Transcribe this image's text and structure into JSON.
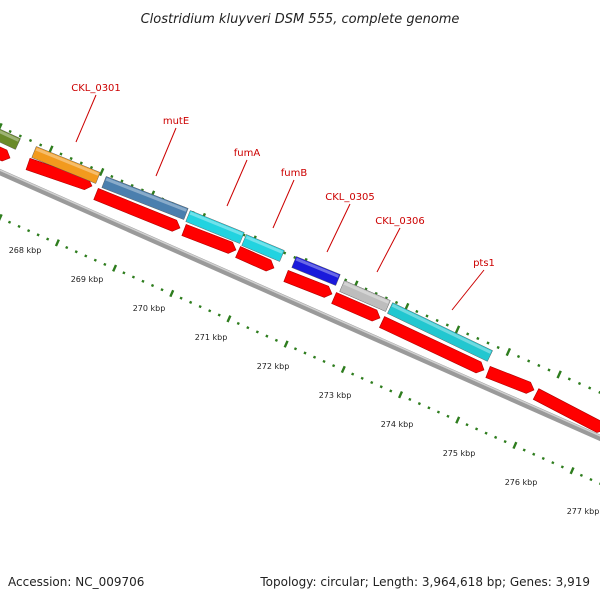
{
  "title": "Clostridium kluyveri DSM 555, complete genome",
  "footer": {
    "accession": "Accession: NC_009706",
    "summary": "Topology: circular; Length: 3,964,618 bp; Genes: 3,919"
  },
  "colors": {
    "gene_red": "#ff0000",
    "backbone": "#808080",
    "label_red": "#cc0000",
    "tick_green": "#2e7d1e"
  },
  "gene_labels": [
    {
      "name": "CKL_0301",
      "color": "#f29a1e"
    },
    {
      "name": "mutE",
      "color": "#4b7fae"
    },
    {
      "name": "fumA",
      "color": "#22d3e0"
    },
    {
      "name": "fumB",
      "color": "#22d3e0"
    },
    {
      "name": "CKL_0305",
      "color": "#1a1adb"
    },
    {
      "name": "CKL_0306",
      "color": "#bdbdbd"
    },
    {
      "name": "pts1",
      "color": "#22c7d0"
    }
  ],
  "scale_labels": [
    "268 kbp",
    "269 kbp",
    "270 kbp",
    "271 kbp",
    "272 kbp",
    "273 kbp",
    "274 kbp",
    "275 kbp",
    "276 kbp",
    "277 kbp"
  ]
}
